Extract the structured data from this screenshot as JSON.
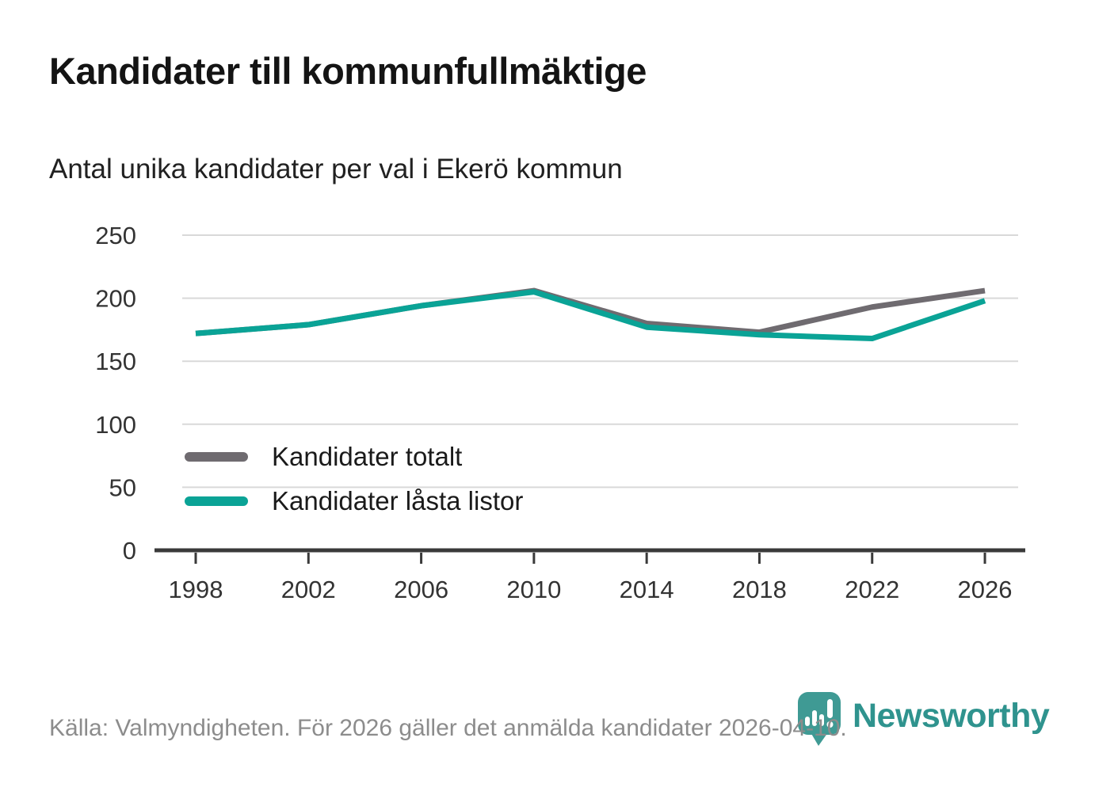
{
  "chart_data": {
    "type": "line",
    "title": "Kandidater till kommunfullmäktige",
    "subtitle": "Antal unika kandidater per val i Ekerö kommun",
    "x": [
      1998,
      2002,
      2006,
      2010,
      2014,
      2018,
      2022,
      2026
    ],
    "series": [
      {
        "name": "Kandidater totalt",
        "color": "#6f6b70",
        "values": [
          172,
          179,
          194,
          206,
          180,
          173,
          193,
          206
        ]
      },
      {
        "name": "Kandidater låsta listor",
        "color": "#0aa396",
        "values": [
          172,
          179,
          194,
          205,
          177,
          171,
          168,
          198
        ]
      }
    ],
    "xlabel": "",
    "ylabel": "",
    "ylim": [
      0,
      250
    ],
    "yticks": [
      0,
      50,
      100,
      150,
      200,
      250
    ],
    "grid": "horizontal",
    "legend_position": "inside-left-middle",
    "axis_color": "#3a3a3a",
    "gridline_color": "#d9d9d9",
    "tick_label_color": "#333333"
  },
  "footer": {
    "source": "Källa: Valmyndigheten. För 2026 gäller det anmälda kandidater 2026-04-10.",
    "brand": "Newsworthy",
    "brand_color": "#2f938e",
    "brand_pin_color": "#3f9a94"
  }
}
